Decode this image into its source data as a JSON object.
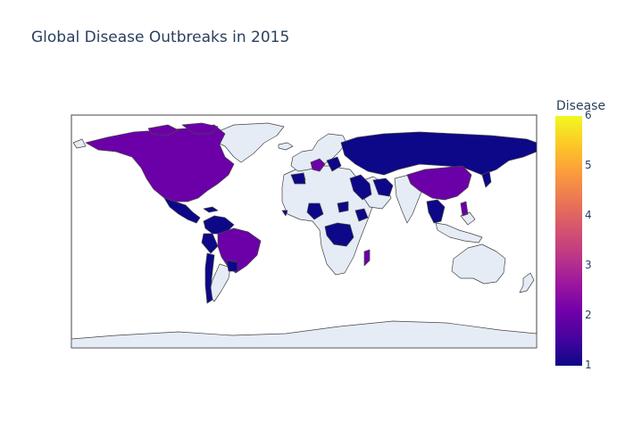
{
  "title": "Global Disease Outbreaks in 2015",
  "colorbar": {
    "title": "Disease",
    "ticks": [
      "1",
      "2",
      "3",
      "4",
      "5",
      "6"
    ],
    "min": 1,
    "max": 6,
    "colorscale": [
      "#0d0887",
      "#46039f",
      "#7201a8",
      "#9c179e",
      "#bd3786",
      "#d8576b",
      "#ed7953",
      "#fb9f3a",
      "#fdca26",
      "#f0f921"
    ]
  },
  "map": {
    "land_color": "#e5ecf6",
    "border_color": "#444444",
    "projection": "equirectangular",
    "regions": [
      {
        "name": "North America",
        "value": 2
      },
      {
        "name": "Central America",
        "value": 1
      },
      {
        "name": "Brazil",
        "value": 2
      },
      {
        "name": "Colombia",
        "value": 1
      },
      {
        "name": "Chile",
        "value": 1
      },
      {
        "name": "Argentina south",
        "value": 1
      },
      {
        "name": "Russia",
        "value": 1
      },
      {
        "name": "Central Asia",
        "value": 1
      },
      {
        "name": "China",
        "value": 2
      },
      {
        "name": "Middle East",
        "value": 1
      },
      {
        "name": "Iran",
        "value": 1
      },
      {
        "name": "Southeast Asia",
        "value": 1
      },
      {
        "name": "Philippines",
        "value": 2
      },
      {
        "name": "Japan",
        "value": 1
      },
      {
        "name": "Madagascar",
        "value": 2
      },
      {
        "name": "Central Africa",
        "value": 1
      },
      {
        "name": "West Africa",
        "value": 1
      },
      {
        "name": "Morocco",
        "value": 1
      },
      {
        "name": "Europe",
        "value": 2
      },
      {
        "name": "Ukraine",
        "value": 1
      }
    ]
  }
}
